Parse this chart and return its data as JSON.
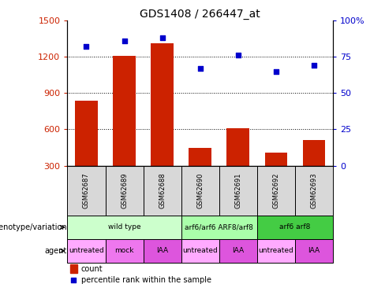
{
  "title": "GDS1408 / 266447_at",
  "samples": [
    "GSM62687",
    "GSM62689",
    "GSM62688",
    "GSM62690",
    "GSM62691",
    "GSM62692",
    "GSM62693"
  ],
  "bar_values": [
    840,
    1210,
    1310,
    450,
    610,
    410,
    510
  ],
  "scatter_values": [
    82,
    86,
    88,
    67,
    76,
    65,
    69
  ],
  "ylim_left": [
    300,
    1500
  ],
  "ylim_right": [
    0,
    100
  ],
  "yticks_left": [
    300,
    600,
    900,
    1200,
    1500
  ],
  "yticks_right": [
    0,
    25,
    50,
    75,
    100
  ],
  "bar_color": "#cc2200",
  "scatter_color": "#0000cc",
  "genotype_groups": [
    {
      "label": "wild type",
      "start": 0,
      "end": 3,
      "color": "#ccffcc"
    },
    {
      "label": "arf6/arf6 ARF8/arf8",
      "start": 3,
      "end": 5,
      "color": "#aaffaa"
    },
    {
      "label": "arf6 arf8",
      "start": 5,
      "end": 7,
      "color": "#44cc44"
    }
  ],
  "agent_groups": [
    {
      "label": "untreated",
      "start": 0,
      "end": 1,
      "color": "#ffaaff"
    },
    {
      "label": "mock",
      "start": 1,
      "end": 2,
      "color": "#ee77ee"
    },
    {
      "label": "IAA",
      "start": 2,
      "end": 3,
      "color": "#dd55dd"
    },
    {
      "label": "untreated",
      "start": 3,
      "end": 4,
      "color": "#ffaaff"
    },
    {
      "label": "IAA",
      "start": 4,
      "end": 5,
      "color": "#dd55dd"
    },
    {
      "label": "untreated",
      "start": 5,
      "end": 6,
      "color": "#ffaaff"
    },
    {
      "label": "IAA",
      "start": 6,
      "end": 7,
      "color": "#dd55dd"
    }
  ],
  "legend_count_color": "#cc2200",
  "legend_scatter_color": "#0000cc",
  "title_fontsize": 10,
  "tick_fontsize": 8,
  "label_fontsize": 7.5
}
